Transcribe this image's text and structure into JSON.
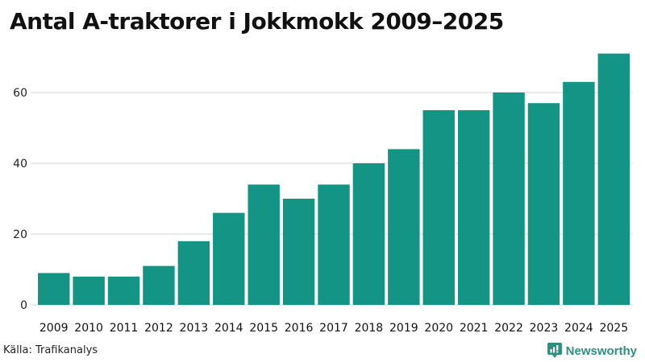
{
  "header": {
    "title": "Antal A-traktorer i Jokkmokk 2009–2025"
  },
  "footer": {
    "source": "Källa: Trafikanalys",
    "brand": "Newsworthy",
    "brand_icon": "bar-chart-speech-bubble-icon"
  },
  "colors": {
    "bar": "#139485",
    "grid": "#e2e2e8",
    "brand": "#2f8f81",
    "title": "#111111"
  },
  "chart_data": {
    "type": "bar",
    "title": "Antal A-traktorer i Jokkmokk 2009–2025",
    "xlabel": "",
    "ylabel": "",
    "categories": [
      "2009",
      "2010",
      "2011",
      "2012",
      "2013",
      "2014",
      "2015",
      "2016",
      "2017",
      "2018",
      "2019",
      "2020",
      "2021",
      "2022",
      "2023",
      "2024",
      "2025"
    ],
    "values": [
      9,
      8,
      8,
      11,
      18,
      26,
      34,
      30,
      34,
      40,
      44,
      55,
      55,
      60,
      57,
      63,
      71
    ],
    "yticks": [
      0,
      20,
      40,
      60
    ],
    "ylim": [
      0,
      72
    ],
    "grid": true,
    "legend": null,
    "source": "Källa: Trafikanalys"
  }
}
